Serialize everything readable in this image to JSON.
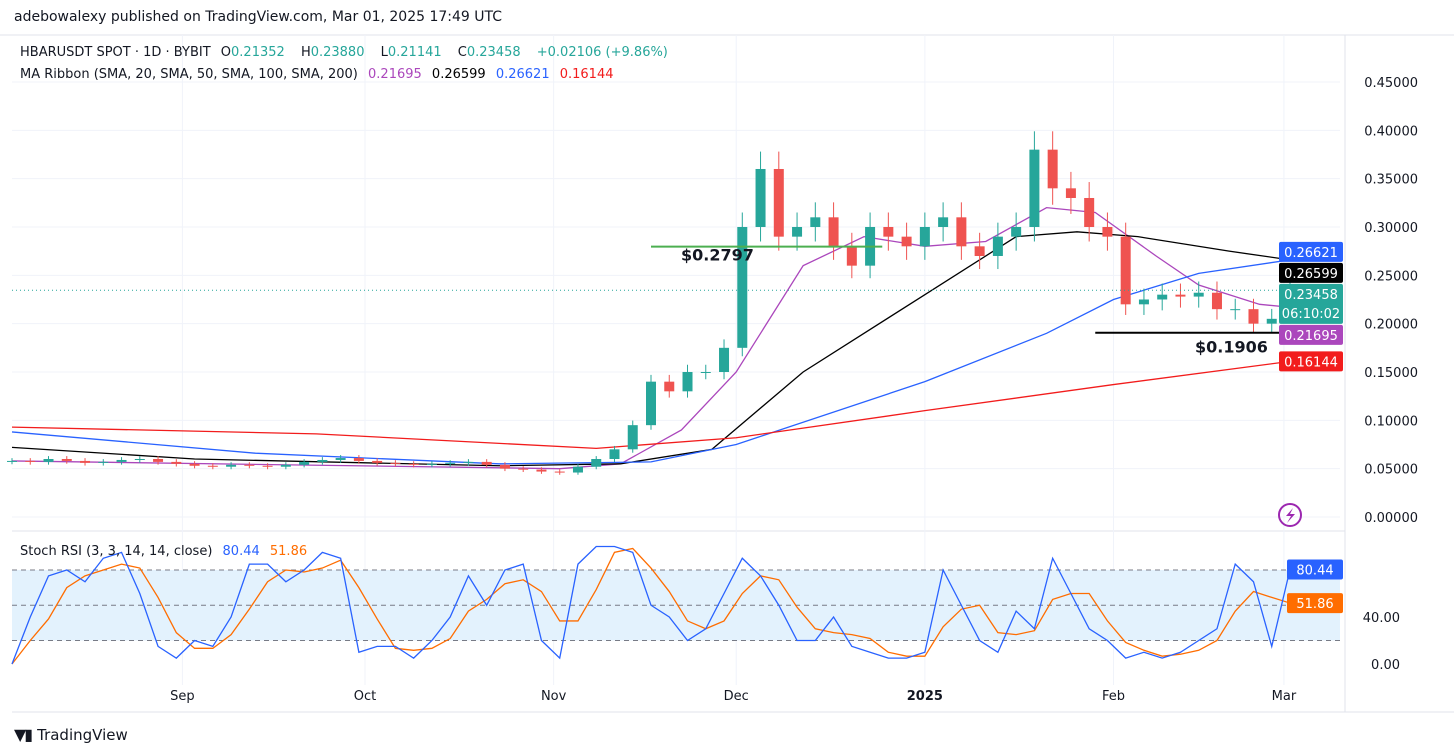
{
  "header": {
    "published": "adebowalexy published on TradingView.com, Mar 01, 2025 17:49 UTC"
  },
  "legend": {
    "symbol": "HBARUSDT SPOT · 1D · BYBIT",
    "o_label": "O",
    "o": "0.21352",
    "h_label": "H",
    "h": "0.23880",
    "l_label": "L",
    "l": "0.21141",
    "c_label": "C",
    "c": "0.23458",
    "change": "+0.02106 (+9.86%)",
    "ma_title": "MA Ribbon (SMA, 20, SMA, 50, SMA, 100, SMA, 200)",
    "ma20": "0.21695",
    "ma50": "0.26599",
    "ma100": "0.26621",
    "ma200": "0.16144",
    "rsi_title": "Stoch RSI (3, 3, 14, 14, close)",
    "rsi_k": "80.44",
    "rsi_d": "51.86"
  },
  "brand": {
    "name": "TradingView",
    "logo": "17"
  },
  "colors": {
    "up": "#26a69a",
    "down": "#ef5350",
    "ma20": "#ab47bc",
    "ma50": "#000000",
    "ma100": "#2962ff",
    "ma200": "#f21c1c",
    "k": "#2962ff",
    "d": "#ff6d00",
    "band": "#e3f2fd"
  },
  "chart_data": {
    "type": "candlestick",
    "title": "HBARUSDT SPOT · 1D · BYBIT",
    "step_days": 3,
    "closes": [
      0.058,
      0.057,
      0.06,
      0.058,
      0.056,
      0.057,
      0.059,
      0.06,
      0.057,
      0.055,
      0.053,
      0.052,
      0.054,
      0.053,
      0.052,
      0.054,
      0.057,
      0.059,
      0.061,
      0.058,
      0.056,
      0.055,
      0.054,
      0.055,
      0.056,
      0.057,
      0.054,
      0.05,
      0.049,
      0.047,
      0.046,
      0.052,
      0.06,
      0.07,
      0.095,
      0.14,
      0.13,
      0.15,
      0.15,
      0.175,
      0.3,
      0.36,
      0.29,
      0.3,
      0.31,
      0.28,
      0.26,
      0.3,
      0.29,
      0.28,
      0.3,
      0.31,
      0.28,
      0.27,
      0.29,
      0.3,
      0.38,
      0.34,
      0.33,
      0.3,
      0.29,
      0.22,
      0.225,
      0.23,
      0.228,
      0.232,
      0.215,
      0.215,
      0.2,
      0.205,
      0.23458
    ],
    "last_open": 0.21352,
    "ma_series": [
      {
        "name": "SMA 20",
        "color_key": "ma20",
        "points": [
          [
            0,
            0.058
          ],
          [
            90,
            0.05
          ],
          [
            100,
            0.055
          ],
          [
            110,
            0.09
          ],
          [
            119,
            0.15
          ],
          [
            130,
            0.26
          ],
          [
            140,
            0.29
          ],
          [
            150,
            0.28
          ],
          [
            160,
            0.285
          ],
          [
            170,
            0.32
          ],
          [
            178,
            0.315
          ],
          [
            188,
            0.27
          ],
          [
            195,
            0.24
          ],
          [
            205,
            0.22
          ],
          [
            210,
            0.217
          ]
        ]
      },
      {
        "name": "SMA 50",
        "color_key": "ma50",
        "points": [
          [
            0,
            0.072
          ],
          [
            30,
            0.06
          ],
          [
            80,
            0.053
          ],
          [
            100,
            0.055
          ],
          [
            115,
            0.07
          ],
          [
            130,
            0.15
          ],
          [
            150,
            0.23
          ],
          [
            165,
            0.29
          ],
          [
            175,
            0.295
          ],
          [
            185,
            0.29
          ],
          [
            200,
            0.275
          ],
          [
            210,
            0.266
          ]
        ]
      },
      {
        "name": "SMA 100",
        "color_key": "ma100",
        "points": [
          [
            0,
            0.088
          ],
          [
            40,
            0.066
          ],
          [
            80,
            0.055
          ],
          [
            105,
            0.057
          ],
          [
            119,
            0.075
          ],
          [
            150,
            0.14
          ],
          [
            170,
            0.19
          ],
          [
            181,
            0.225
          ],
          [
            195,
            0.252
          ],
          [
            210,
            0.266
          ]
        ]
      },
      {
        "name": "SMA 200",
        "color_key": "ma200",
        "points": [
          [
            0,
            0.093
          ],
          [
            50,
            0.086
          ],
          [
            96,
            0.071
          ],
          [
            119,
            0.082
          ],
          [
            150,
            0.11
          ],
          [
            181,
            0.137
          ],
          [
            210,
            0.161
          ]
        ]
      }
    ],
    "price_ylim": [
      0,
      0.45
    ],
    "price_ticks": [
      "0.00000",
      "0.05000",
      "0.10000",
      "0.15000",
      "0.20000",
      "0.25000",
      "0.30000",
      "0.35000",
      "0.40000",
      "0.45000"
    ],
    "price_tags": [
      {
        "value": "0.26621",
        "v": 0.2742,
        "color_key": "ma100"
      },
      {
        "value": "0.26599",
        "v": 0.2655,
        "color_key": "ma50"
      },
      {
        "value": "0.23458",
        "sub": "06:10:02",
        "v": 0.2346,
        "color_key": "up"
      },
      {
        "value": "0.21695",
        "v": 0.197,
        "color_key": "ma20"
      },
      {
        "value": "0.16144",
        "v": 0.161,
        "color_key": "ma200"
      }
    ],
    "annotations": [
      {
        "label": "$0.2797",
        "value": 0.2797,
        "from_day": 105,
        "to_day": 143,
        "color": "#4caf50"
      },
      {
        "label": "$0.1906",
        "value": 0.1906,
        "from_day": 178,
        "to_day": 214,
        "color": "#000000"
      }
    ],
    "x_ticks": [
      {
        "label": "Sep",
        "day": 28
      },
      {
        "label": "Oct",
        "day": 58
      },
      {
        "label": "Nov",
        "day": 89
      },
      {
        "label": "Dec",
        "day": 119
      },
      {
        "label": "2025",
        "day": 150,
        "bold": true
      },
      {
        "label": "Feb",
        "day": 181
      },
      {
        "label": "Mar",
        "day": 209
      }
    ],
    "stoch_rsi": {
      "k": [
        0,
        40,
        75,
        80,
        70,
        90,
        95,
        60,
        15,
        5,
        20,
        15,
        40,
        85,
        85,
        70,
        80,
        95,
        90,
        10,
        15,
        15,
        5,
        20,
        40,
        75,
        50,
        80,
        85,
        20,
        5,
        85,
        100,
        100,
        95,
        50,
        40,
        20,
        30,
        60,
        90,
        75,
        50,
        20,
        20,
        40,
        15,
        10,
        5,
        5,
        10,
        80,
        50,
        20,
        10,
        45,
        30,
        90,
        60,
        30,
        20,
        5,
        10,
        5,
        10,
        20,
        30,
        85,
        70,
        15,
        80.44
      ],
      "d_last": 51.86,
      "ylim": [
        0,
        100
      ],
      "bands": [
        20,
        50,
        80
      ],
      "ticks": [
        "0.00",
        "40.00"
      ]
    }
  }
}
